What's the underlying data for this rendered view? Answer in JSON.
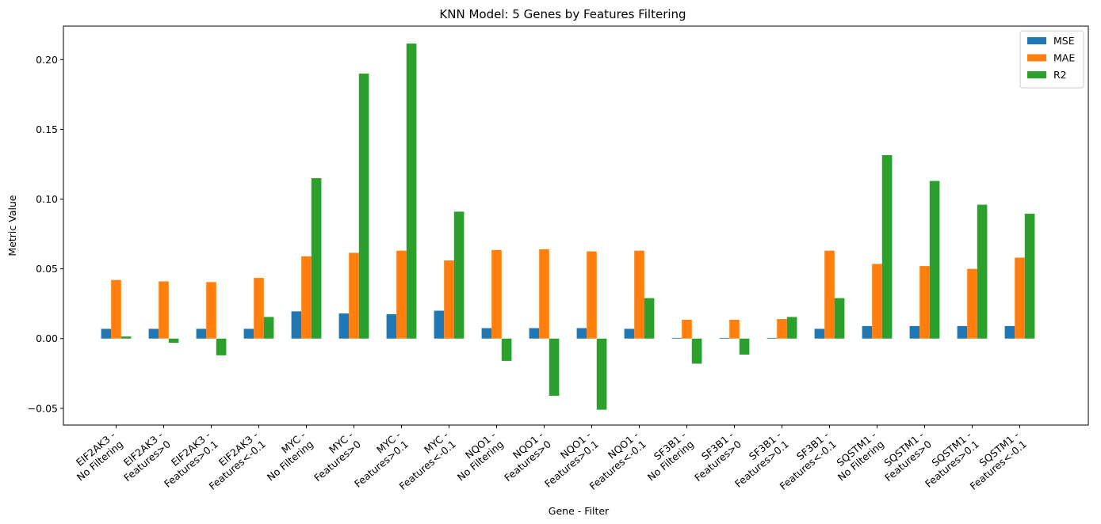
{
  "chart_data": {
    "type": "bar",
    "title": "KNN Model: 5 Genes by Features Filtering",
    "xlabel": "Gene - Filter",
    "ylabel": "Metric Value",
    "ylim": [
      -0.062,
      0.224
    ],
    "yticks": [
      -0.05,
      0.0,
      0.05,
      0.1,
      0.15,
      0.2
    ],
    "ytick_labels": [
      "−0.05",
      "0.00",
      "0.05",
      "0.10",
      "0.15",
      "0.20"
    ],
    "legend_position": "top-right",
    "grid": false,
    "categories": [
      [
        "EIF2AK3 -",
        "No Filtering"
      ],
      [
        "EIF2AK3 -",
        "Features>0"
      ],
      [
        "EIF2AK3 -",
        "Features>0.1"
      ],
      [
        "EIF2AK3 -",
        "Features<-0.1"
      ],
      [
        "MYC -",
        "No Filtering"
      ],
      [
        "MYC -",
        "Features>0"
      ],
      [
        "MYC -",
        "Features>0.1"
      ],
      [
        "MYC -",
        "Features<-0.1"
      ],
      [
        "NQO1 -",
        "No Filtering"
      ],
      [
        "NQO1 -",
        "Features>0"
      ],
      [
        "NQO1 -",
        "Features>0.1"
      ],
      [
        "NQO1 -",
        "Features<-0.1"
      ],
      [
        "SF3B1 -",
        "No Filtering"
      ],
      [
        "SF3B1 -",
        "Features>0"
      ],
      [
        "SF3B1 -",
        "Features>0.1"
      ],
      [
        "SF3B1 -",
        "Features<-0.1"
      ],
      [
        "SQSTM1 -",
        "No Filtering"
      ],
      [
        "SQSTM1 -",
        "Features>0"
      ],
      [
        "SQSTM1 -",
        "Features>0.1"
      ],
      [
        "SQSTM1 -",
        "Features<-0.1"
      ]
    ],
    "series": [
      {
        "name": "MSE",
        "color": "#1f77b4",
        "values": [
          0.007,
          0.007,
          0.007,
          0.007,
          0.0195,
          0.018,
          0.0175,
          0.02,
          0.0075,
          0.0075,
          0.0075,
          0.007,
          0.0005,
          0.0005,
          0.0005,
          0.007,
          0.009,
          0.009,
          0.009,
          0.009
        ]
      },
      {
        "name": "MAE",
        "color": "#ff7f0e",
        "values": [
          0.042,
          0.041,
          0.0405,
          0.0435,
          0.059,
          0.0615,
          0.063,
          0.056,
          0.0635,
          0.064,
          0.0625,
          0.063,
          0.0135,
          0.0135,
          0.014,
          0.063,
          0.0535,
          0.052,
          0.05,
          0.058
        ]
      },
      {
        "name": "R2",
        "color": "#2ca02c",
        "values": [
          0.0015,
          -0.003,
          -0.012,
          0.0155,
          0.115,
          0.19,
          0.2115,
          0.091,
          -0.016,
          -0.041,
          -0.051,
          0.029,
          -0.018,
          -0.0115,
          0.0155,
          0.029,
          0.1315,
          0.113,
          0.096,
          0.0895
        ]
      }
    ]
  }
}
